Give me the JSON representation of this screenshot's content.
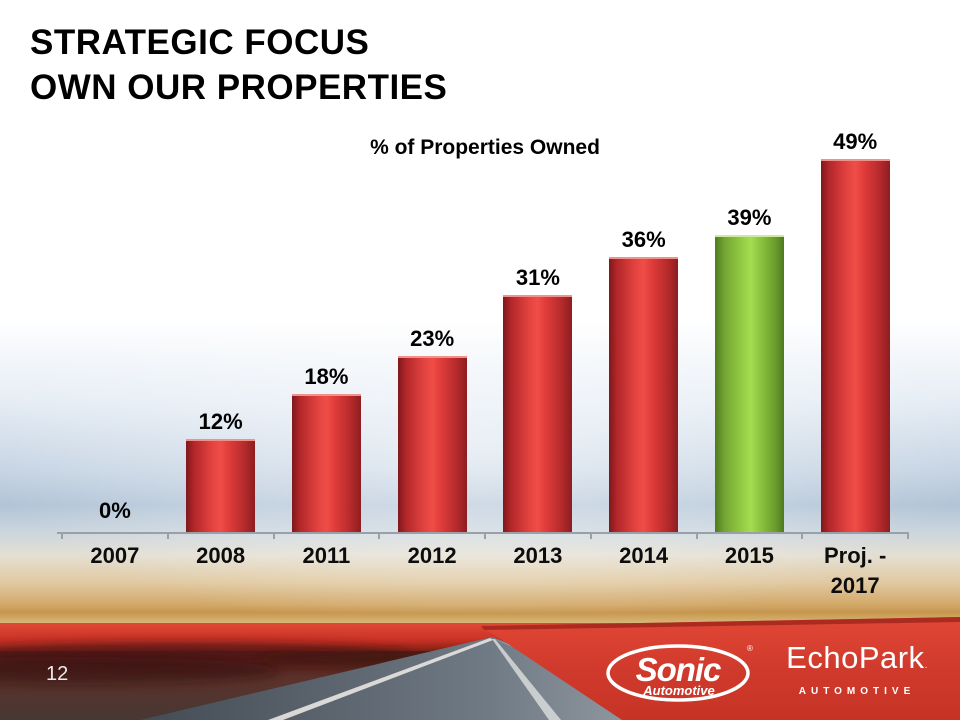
{
  "slide": {
    "title_line1": "STRATEGIC FOCUS",
    "title_line2": "OWN OUR PROPERTIES",
    "page_number": "12"
  },
  "chart_data": {
    "type": "bar",
    "title": "% of Properties Owned",
    "categories": [
      "2007",
      "2008",
      "2011",
      "2012",
      "2013",
      "2014",
      "2015",
      "Proj. -\n2017"
    ],
    "values": [
      0,
      12,
      18,
      23,
      31,
      36,
      39,
      49
    ],
    "value_labels": [
      "0%",
      "12%",
      "18%",
      "23%",
      "31%",
      "36%",
      "39%",
      "49%"
    ],
    "highlight_index": 6,
    "ylim": [
      0,
      52
    ],
    "grid": false,
    "legend": false,
    "bar_color": "#d93a38",
    "highlight_color": "#8cc63e",
    "axis_color": "#99a0a7",
    "label_color": "#000000"
  },
  "footer": {
    "sonic": {
      "name": "Sonic",
      "sub": "Automotive",
      "reg": "®"
    },
    "echopark": {
      "name": "EchoPark",
      "trademark": ".",
      "sub": "AUTOMOTIVE"
    }
  }
}
